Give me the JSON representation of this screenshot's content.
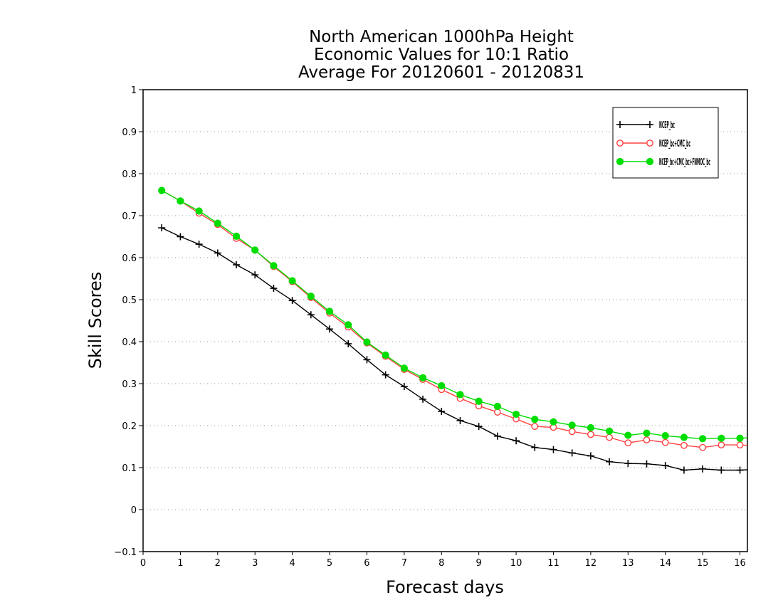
{
  "chart_data": {
    "type": "line",
    "title_lines": [
      "North American 1000hPa Height",
      "Economic Values for 10:1 Ratio",
      "Average For 20120601 - 20120831"
    ],
    "xlabel": "Forecast days",
    "ylabel": "Skill Scores",
    "xlim": [
      0,
      16.2
    ],
    "ylim": [
      -0.1,
      1
    ],
    "x_ticks": [
      "0",
      "1",
      "2",
      "3",
      "4",
      "5",
      "6",
      "7",
      "8",
      "9",
      "10",
      "11",
      "12",
      "13",
      "14",
      "15",
      "16"
    ],
    "y_ticks": [
      "−0.1",
      "0",
      "0.1",
      "0.2",
      "0.3",
      "0.4",
      "0.5",
      "0.6",
      "0.7",
      "0.8",
      "0.9",
      "1"
    ],
    "grid": true,
    "legend_position": "top-right",
    "x": [
      0.5,
      1,
      1.5,
      2,
      2.5,
      3,
      3.5,
      4,
      4.5,
      5,
      5.5,
      6,
      6.5,
      7,
      7.5,
      8,
      8.5,
      9,
      9.5,
      10,
      10.5,
      11,
      11.5,
      12,
      12.5,
      13,
      13.5,
      14,
      14.5,
      15,
      15.5,
      16,
      16.2
    ],
    "series": [
      {
        "name": "NCEP_bc",
        "color": "#000000",
        "marker": "plus",
        "values": [
          0.671,
          0.65,
          0.632,
          0.611,
          0.583,
          0.559,
          0.527,
          0.498,
          0.464,
          0.43,
          0.395,
          0.357,
          0.321,
          0.293,
          0.263,
          0.234,
          0.212,
          0.198,
          0.175,
          0.164,
          0.148,
          0.143,
          0.135,
          0.128,
          0.114,
          0.11,
          0.109,
          0.105,
          0.094,
          0.097,
          0.094,
          0.094,
          0.095
        ]
      },
      {
        "name": "NCEP_bc+CMC_bc",
        "color": "#ff4040",
        "marker": "open-circle",
        "values": [
          0.76,
          0.735,
          0.706,
          0.679,
          0.646,
          0.618,
          0.579,
          0.543,
          0.505,
          0.468,
          0.435,
          0.397,
          0.365,
          0.334,
          0.31,
          0.286,
          0.265,
          0.247,
          0.232,
          0.216,
          0.198,
          0.196,
          0.186,
          0.179,
          0.172,
          0.159,
          0.166,
          0.16,
          0.153,
          0.148,
          0.154,
          0.154,
          0.153
        ]
      },
      {
        "name": "NCEP_bc+CMC_bc+FNMOC_bc",
        "color": "#00dd00",
        "marker": "filled-circle",
        "values": [
          0.76,
          0.735,
          0.711,
          0.682,
          0.651,
          0.618,
          0.581,
          0.545,
          0.508,
          0.472,
          0.44,
          0.399,
          0.368,
          0.337,
          0.314,
          0.295,
          0.274,
          0.258,
          0.246,
          0.227,
          0.215,
          0.209,
          0.201,
          0.195,
          0.187,
          0.177,
          0.182,
          0.176,
          0.172,
          0.169,
          0.17,
          0.17,
          0.171
        ]
      }
    ]
  }
}
